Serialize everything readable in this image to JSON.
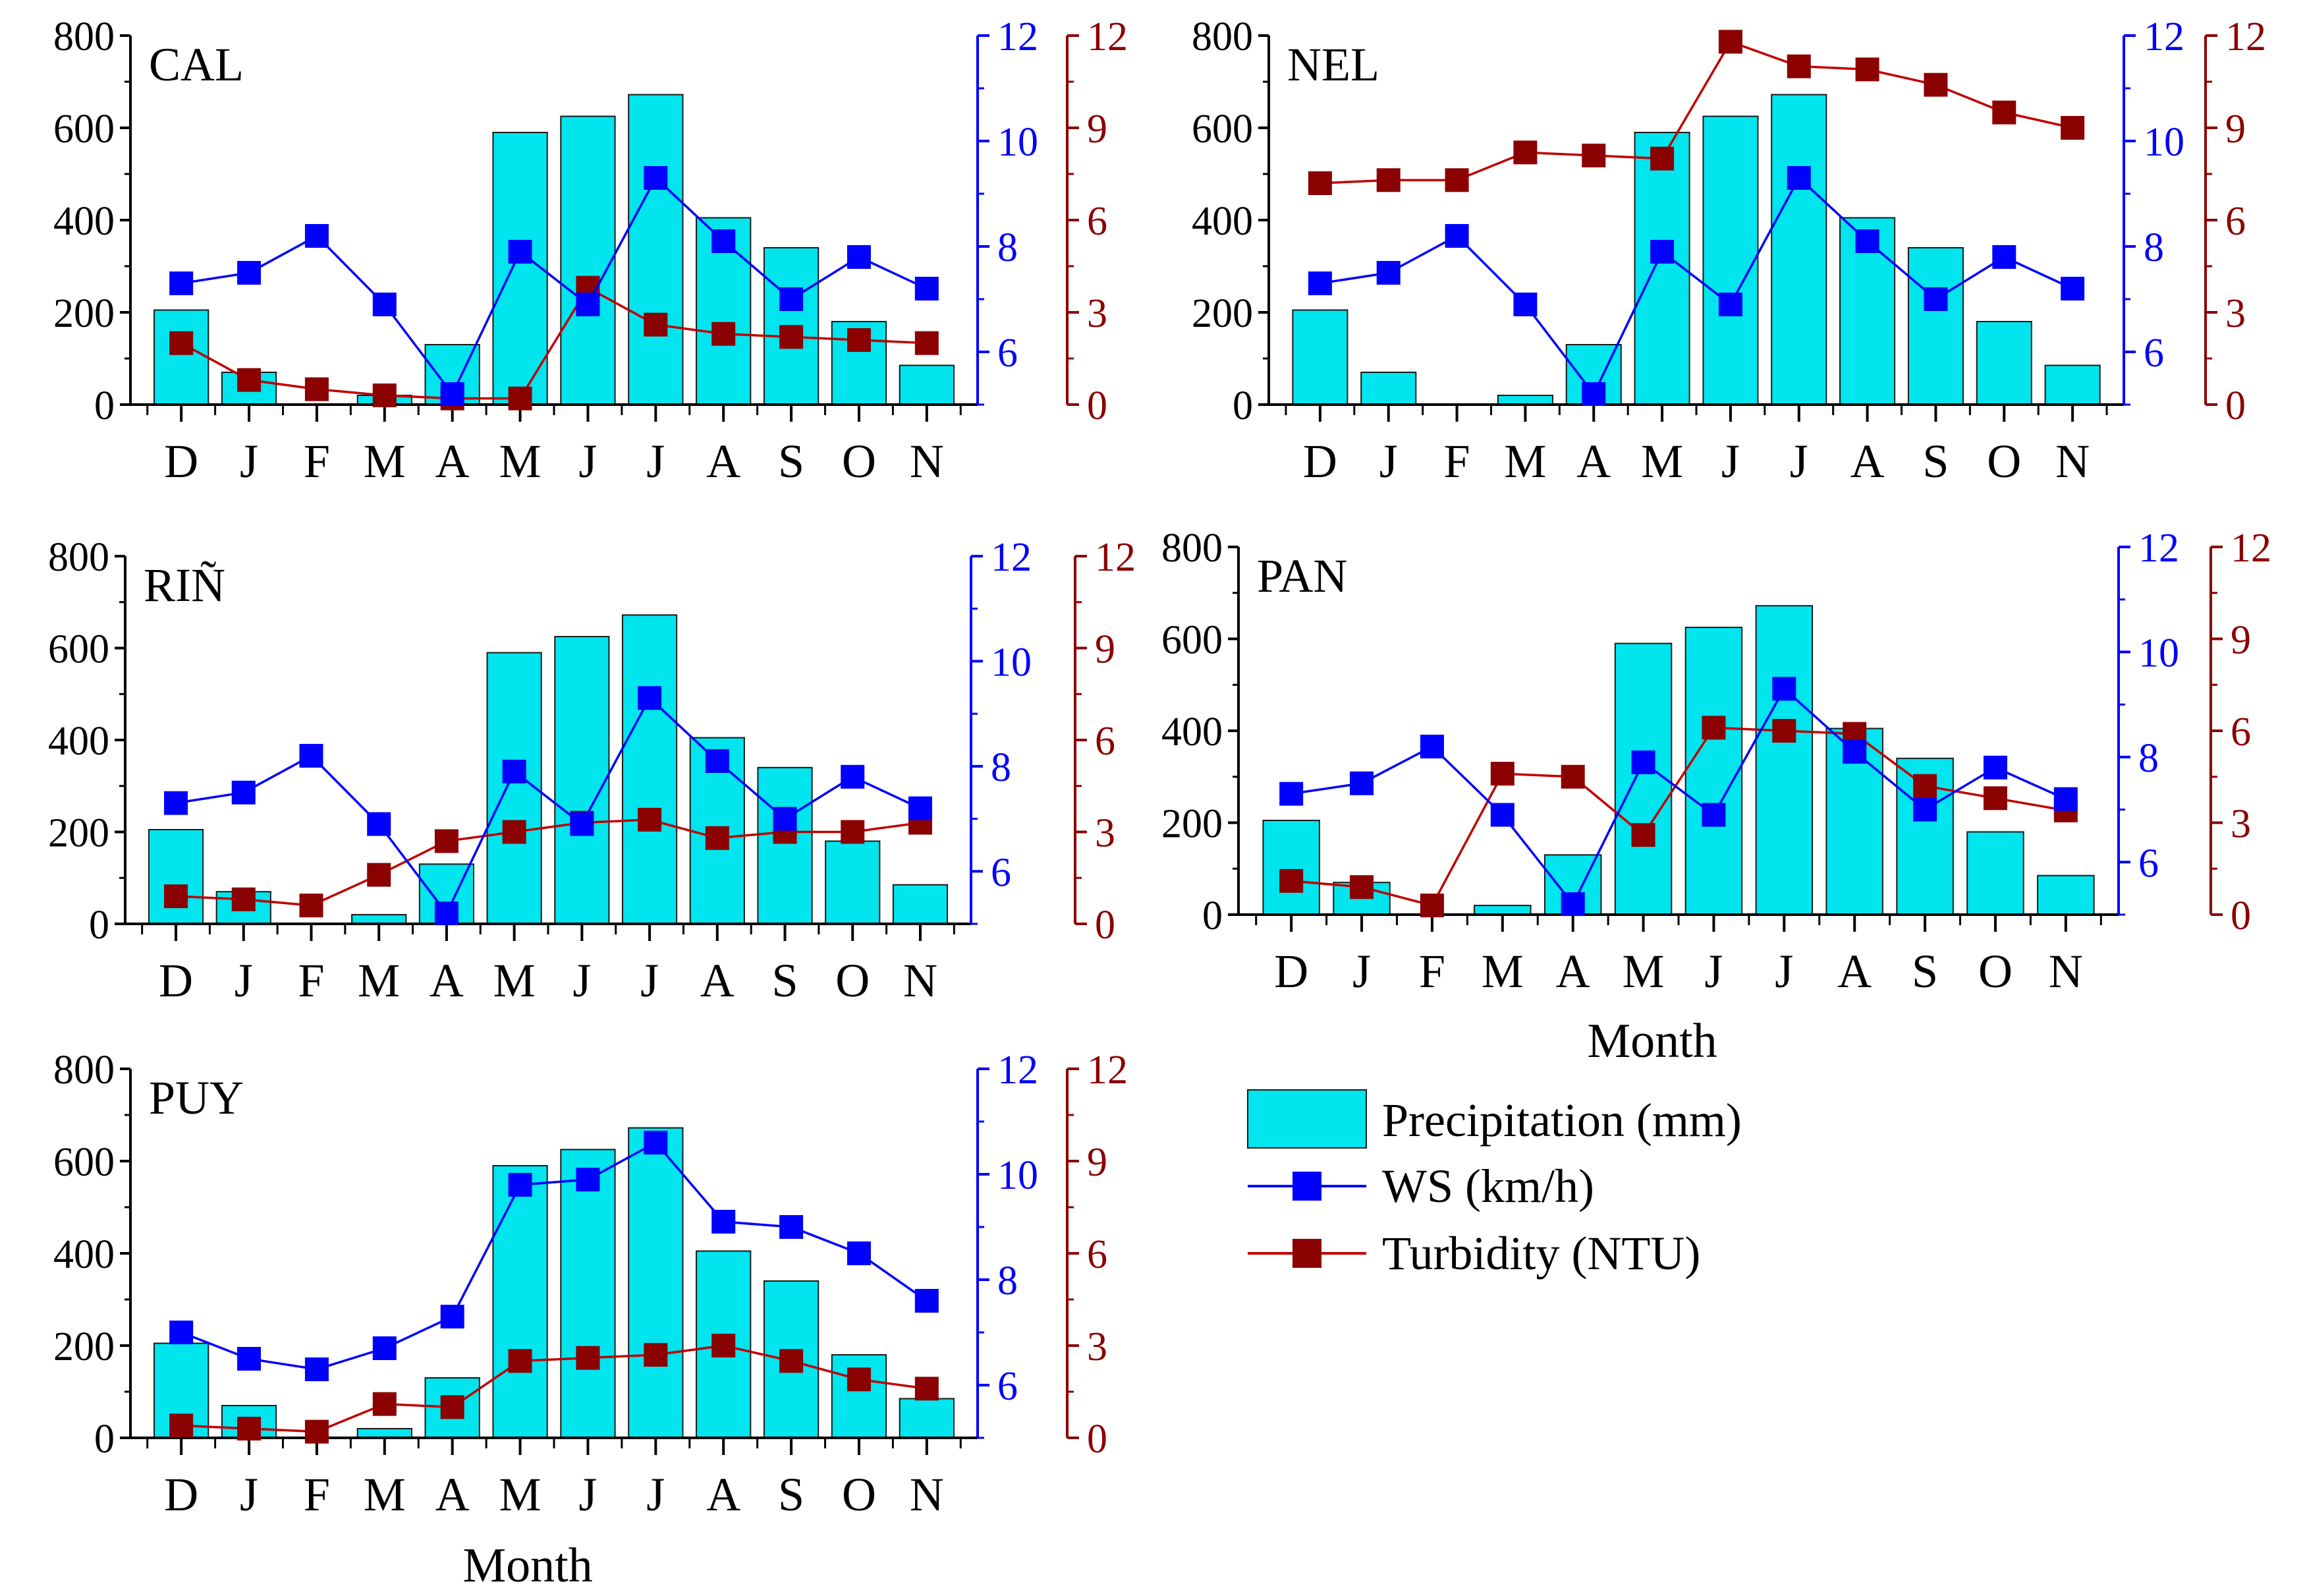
{
  "figure": {
    "months": [
      "D",
      "J",
      "F",
      "M",
      "A",
      "M",
      "J",
      "J",
      "A",
      "S",
      "O",
      "N"
    ],
    "xlabel": "Month",
    "colors": {
      "bar_fill": "#00e5ee",
      "bar_stroke": "#1a1a1a",
      "ws": "#0000ff",
      "turb_line": "#c00000",
      "turb_marker": "#8b0000",
      "axis": "#000000",
      "ws_axis": "#0000ff",
      "turb_axis": "#8b0000"
    },
    "legend": {
      "precipitation": "Precipitation (mm)",
      "ws": "WS (km/h)",
      "turbidity": "Turbidity (NTU)"
    }
  },
  "chart_data": [
    {
      "type": "bar+line",
      "title": "CAL",
      "categories": [
        "D",
        "J",
        "F",
        "M",
        "A",
        "M",
        "J",
        "J",
        "A",
        "S",
        "O",
        "N"
      ],
      "precip_ylim": [
        0,
        800
      ],
      "precip_ticks": [
        "0",
        "200",
        "400",
        "600",
        "800"
      ],
      "ws_ylim": [
        5,
        12
      ],
      "ws_ticks": [
        "6",
        "8",
        "10",
        "12"
      ],
      "turb_ylim": [
        0,
        12
      ],
      "turb_ticks": [
        "0",
        "3",
        "6",
        "9",
        "12"
      ],
      "series": [
        {
          "name": "Precipitation (mm)",
          "values": [
            205,
            70,
            0,
            20,
            130,
            590,
            625,
            672,
            405,
            340,
            180,
            85
          ]
        },
        {
          "name": "WS (km/h)",
          "values": [
            7.3,
            7.5,
            8.2,
            6.9,
            5.2,
            7.9,
            6.9,
            9.3,
            8.1,
            7.0,
            7.8,
            7.2
          ]
        },
        {
          "name": "Turbidity (NTU)",
          "values": [
            2.0,
            0.8,
            0.5,
            0.3,
            0.2,
            0.2,
            3.8,
            2.6,
            2.3,
            2.2,
            2.1,
            2.0
          ]
        }
      ],
      "xlabel": ""
    },
    {
      "type": "bar+line",
      "title": "NEL",
      "categories": [
        "D",
        "J",
        "F",
        "M",
        "A",
        "M",
        "J",
        "J",
        "A",
        "S",
        "O",
        "N"
      ],
      "precip_ylim": [
        0,
        800
      ],
      "precip_ticks": [
        "0",
        "200",
        "400",
        "600",
        "800"
      ],
      "ws_ylim": [
        5,
        12
      ],
      "ws_ticks": [
        "6",
        "8",
        "10",
        "12"
      ],
      "turb_ylim": [
        0,
        12
      ],
      "turb_ticks": [
        "0",
        "3",
        "6",
        "9",
        "12"
      ],
      "series": [
        {
          "name": "Precipitation (mm)",
          "values": [
            205,
            70,
            0,
            20,
            130,
            590,
            625,
            672,
            405,
            340,
            180,
            85
          ]
        },
        {
          "name": "WS (km/h)",
          "values": [
            7.3,
            7.5,
            8.2,
            6.9,
            5.2,
            7.9,
            6.9,
            9.3,
            8.1,
            7.0,
            7.8,
            7.2
          ]
        },
        {
          "name": "Turbidity (NTU)",
          "values": [
            7.2,
            7.3,
            7.3,
            8.2,
            8.1,
            8.0,
            11.8,
            11.0,
            10.9,
            10.4,
            9.5,
            9.0
          ]
        }
      ],
      "xlabel": ""
    },
    {
      "type": "bar+line",
      "title": "RIÑ",
      "categories": [
        "D",
        "J",
        "F",
        "M",
        "A",
        "M",
        "J",
        "J",
        "A",
        "S",
        "O",
        "N"
      ],
      "precip_ylim": [
        0,
        800
      ],
      "precip_ticks": [
        "0",
        "200",
        "400",
        "600",
        "800"
      ],
      "ws_ylim": [
        5,
        12
      ],
      "ws_ticks": [
        "6",
        "8",
        "10",
        "12"
      ],
      "turb_ylim": [
        0,
        12
      ],
      "turb_ticks": [
        "0",
        "3",
        "6",
        "9",
        "12"
      ],
      "series": [
        {
          "name": "Precipitation (mm)",
          "values": [
            205,
            70,
            0,
            20,
            130,
            590,
            625,
            672,
            405,
            340,
            180,
            85
          ]
        },
        {
          "name": "WS (km/h)",
          "values": [
            7.3,
            7.5,
            8.2,
            6.9,
            5.2,
            7.9,
            6.9,
            9.3,
            8.1,
            7.0,
            7.8,
            7.2
          ]
        },
        {
          "name": "Turbidity (NTU)",
          "values": [
            0.9,
            0.8,
            0.6,
            1.6,
            2.7,
            3.0,
            3.3,
            3.4,
            2.8,
            3.0,
            3.0,
            3.3
          ]
        }
      ],
      "xlabel": ""
    },
    {
      "type": "bar+line",
      "title": "PAN",
      "categories": [
        "D",
        "J",
        "F",
        "M",
        "A",
        "M",
        "J",
        "J",
        "A",
        "S",
        "O",
        "N"
      ],
      "precip_ylim": [
        0,
        800
      ],
      "precip_ticks": [
        "0",
        "200",
        "400",
        "600",
        "800"
      ],
      "ws_ylim": [
        5,
        12
      ],
      "ws_ticks": [
        "6",
        "8",
        "10",
        "12"
      ],
      "turb_ylim": [
        0,
        12
      ],
      "turb_ticks": [
        "0",
        "3",
        "6",
        "9",
        "12"
      ],
      "series": [
        {
          "name": "Precipitation (mm)",
          "values": [
            205,
            70,
            0,
            20,
            130,
            590,
            625,
            672,
            405,
            340,
            180,
            85
          ]
        },
        {
          "name": "WS (km/h)",
          "values": [
            7.3,
            7.5,
            8.2,
            6.9,
            5.2,
            7.9,
            6.9,
            9.3,
            8.1,
            7.0,
            7.8,
            7.2
          ]
        },
        {
          "name": "Turbidity (NTU)",
          "values": [
            1.1,
            0.9,
            0.3,
            4.6,
            4.5,
            2.6,
            6.1,
            6.0,
            5.9,
            4.2,
            3.8,
            3.4
          ]
        }
      ],
      "xlabel": "Month"
    },
    {
      "type": "bar+line",
      "title": "PUY",
      "categories": [
        "D",
        "J",
        "F",
        "M",
        "A",
        "M",
        "J",
        "J",
        "A",
        "S",
        "O",
        "N"
      ],
      "precip_ylim": [
        0,
        800
      ],
      "precip_ticks": [
        "0",
        "200",
        "400",
        "600",
        "800"
      ],
      "ws_ylim": [
        5,
        12
      ],
      "ws_ticks": [
        "6",
        "8",
        "10",
        "12"
      ],
      "turb_ylim": [
        0,
        12
      ],
      "turb_ticks": [
        "0",
        "3",
        "6",
        "9",
        "12"
      ],
      "series": [
        {
          "name": "Precipitation (mm)",
          "values": [
            205,
            70,
            0,
            20,
            130,
            590,
            625,
            672,
            405,
            340,
            180,
            85
          ]
        },
        {
          "name": "WS (km/h)",
          "values": [
            7.0,
            6.5,
            6.3,
            6.7,
            7.3,
            9.8,
            9.9,
            10.6,
            9.1,
            9.0,
            8.5,
            7.6
          ]
        },
        {
          "name": "Turbidity (NTU)",
          "values": [
            0.4,
            0.3,
            0.2,
            1.1,
            1.0,
            2.5,
            2.6,
            2.7,
            3.0,
            2.5,
            1.9,
            1.6
          ]
        }
      ],
      "xlabel": "Month"
    }
  ]
}
